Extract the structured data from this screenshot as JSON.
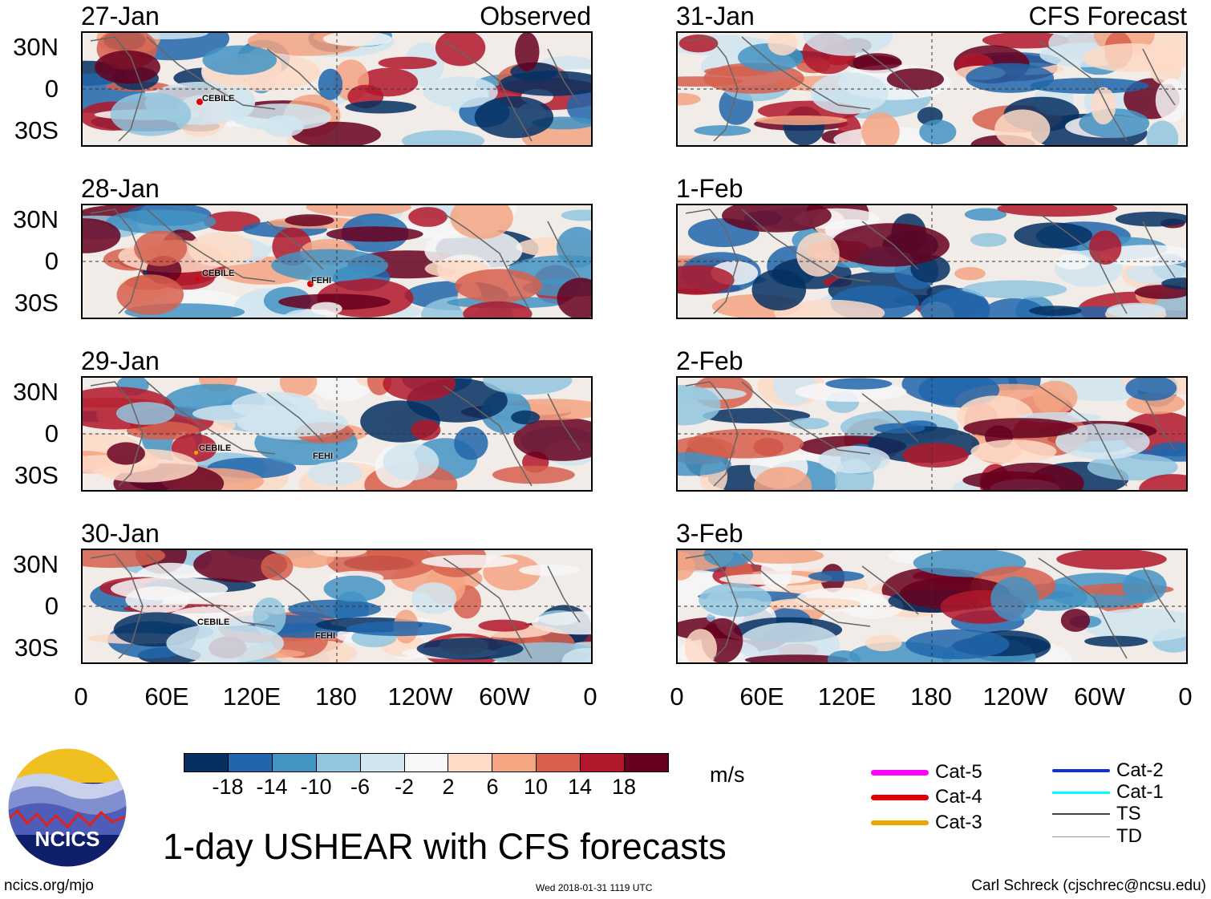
{
  "panels": {
    "p1": {
      "date": "27-Jan",
      "tag": "Observed"
    },
    "p2": {
      "date": "28-Jan"
    },
    "p3": {
      "date": "29-Jan"
    },
    "p4": {
      "date": "30-Jan"
    },
    "p5": {
      "date": "31-Jan",
      "tag": "CFS Forecast"
    },
    "p6": {
      "date": "1-Feb"
    },
    "p7": {
      "date": "2-Feb"
    },
    "p8": {
      "date": "3-Feb"
    }
  },
  "storms": {
    "cebile": "CEBILE",
    "fehi": "FEHI"
  },
  "axes": {
    "y_labels": [
      "30N",
      "0",
      "30S"
    ],
    "x_labels": [
      "0",
      "60E",
      "120E",
      "180",
      "120W",
      "60W",
      "0"
    ]
  },
  "colorbar": {
    "ticks": [
      "-18",
      "-14",
      "-10",
      "-6",
      "-2",
      "2",
      "6",
      "10",
      "14",
      "18"
    ],
    "units": "m/s",
    "colors": [
      "#053061",
      "#2166ac",
      "#4393c3",
      "#92c5de",
      "#d1e5f0",
      "#f7f7f7",
      "#fddbc7",
      "#f4a582",
      "#d6604d",
      "#b2182b",
      "#67001f"
    ]
  },
  "legend": {
    "cat5": "Cat-5",
    "cat4": "Cat-4",
    "cat3": "Cat-3",
    "cat2": "Cat-2",
    "cat1": "Cat-1",
    "ts": "TS",
    "td": "TD",
    "colors": {
      "cat5": "#ff00ff",
      "cat4": "#e00000",
      "cat3": "#e8a800",
      "cat2": "#1030e0",
      "cat1": "#00ffff",
      "ts": "#444444",
      "td": "#999999"
    }
  },
  "title": "1-day USHEAR with CFS forecasts",
  "footer": {
    "left": "ncics.org/mjo",
    "center": "Wed 2018-01-31 1119 UTC",
    "right": "Carl Schreck (cjschrec@ncsu.edu)"
  },
  "logo": {
    "text": "NCICS"
  }
}
